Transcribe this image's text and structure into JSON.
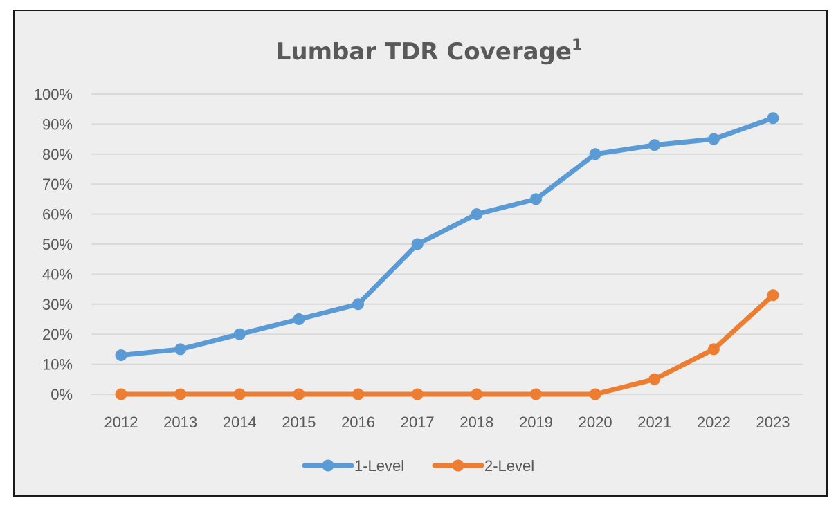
{
  "chart_data": {
    "type": "line",
    "title": "Lumbar TDR Coverage",
    "title_superscript": "1",
    "xlabel": "",
    "ylabel": "",
    "categories": [
      "2012",
      "2013",
      "2014",
      "2015",
      "2016",
      "2017",
      "2018",
      "2019",
      "2020",
      "2021",
      "2022",
      "2023"
    ],
    "ylim": [
      0,
      100
    ],
    "yticks": [
      "0%",
      "10%",
      "20%",
      "30%",
      "40%",
      "50%",
      "60%",
      "70%",
      "80%",
      "90%",
      "100%"
    ],
    "grid": true,
    "legend_position": "bottom",
    "series": [
      {
        "name": "1-Level",
        "color": "#5b9bd5",
        "values": [
          13,
          15,
          20,
          25,
          30,
          50,
          60,
          65,
          80,
          83,
          85,
          92
        ]
      },
      {
        "name": "2-Level",
        "color": "#ed7d31",
        "values": [
          0,
          0,
          0,
          0,
          0,
          0,
          0,
          0,
          0,
          5,
          15,
          33
        ]
      }
    ]
  }
}
